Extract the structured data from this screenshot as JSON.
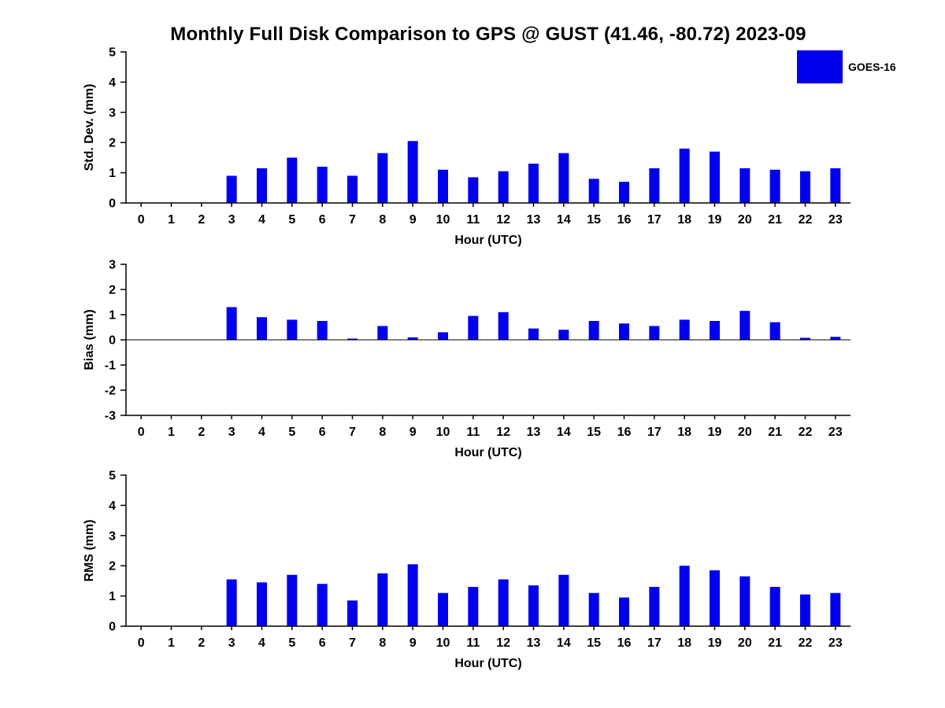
{
  "title": "Monthly Full Disk Comparison to GPS @ GUST (41.46, -80.72) 2023-09",
  "legend": {
    "label": "GOES-16",
    "color": "#0000ee"
  },
  "chart_data": [
    {
      "type": "bar",
      "name": "std-dev",
      "title": "",
      "ylabel": "Std. Dev. (mm)",
      "xlabel": "Hour (UTC)",
      "ylim": [
        0,
        5
      ],
      "yticks": [
        0,
        1,
        2,
        3,
        4,
        5
      ],
      "grid": false,
      "legend_position": "top-right-of-figure",
      "categories": [
        "0",
        "1",
        "2",
        "3",
        "4",
        "5",
        "6",
        "7",
        "8",
        "9",
        "10",
        "11",
        "12",
        "13",
        "14",
        "15",
        "16",
        "17",
        "18",
        "19",
        "20",
        "21",
        "22",
        "23"
      ],
      "series": [
        {
          "name": "GOES-16",
          "values": [
            0,
            0,
            0,
            0.9,
            1.15,
            1.5,
            1.2,
            0.9,
            1.65,
            2.05,
            1.1,
            0.85,
            1.05,
            1.3,
            1.65,
            0.8,
            0.7,
            1.15,
            1.8,
            1.7,
            1.15,
            1.1,
            1.05,
            1.15
          ]
        }
      ]
    },
    {
      "type": "bar",
      "name": "bias",
      "title": "",
      "ylabel": "Bias (mm)",
      "xlabel": "Hour (UTC)",
      "ylim": [
        -3,
        3
      ],
      "yticks": [
        -3,
        -2,
        -1,
        0,
        1,
        2,
        3
      ],
      "grid": false,
      "categories": [
        "0",
        "1",
        "2",
        "3",
        "4",
        "5",
        "6",
        "7",
        "8",
        "9",
        "10",
        "11",
        "12",
        "13",
        "14",
        "15",
        "16",
        "17",
        "18",
        "19",
        "20",
        "21",
        "22",
        "23"
      ],
      "series": [
        {
          "name": "GOES-16",
          "values": [
            0,
            0,
            0,
            1.3,
            0.9,
            0.8,
            0.75,
            0.05,
            0.55,
            0.1,
            0.3,
            0.95,
            1.1,
            0.45,
            0.4,
            0.75,
            0.65,
            0.55,
            0.8,
            0.75,
            1.15,
            0.7,
            0.08,
            0.12
          ]
        }
      ]
    },
    {
      "type": "bar",
      "name": "rms",
      "title": "",
      "ylabel": "RMS (mm)",
      "xlabel": "Hour (UTC)",
      "ylim": [
        0,
        5
      ],
      "yticks": [
        0,
        1,
        2,
        3,
        4,
        5
      ],
      "grid": false,
      "categories": [
        "0",
        "1",
        "2",
        "3",
        "4",
        "5",
        "6",
        "7",
        "8",
        "9",
        "10",
        "11",
        "12",
        "13",
        "14",
        "15",
        "16",
        "17",
        "18",
        "19",
        "20",
        "21",
        "22",
        "23"
      ],
      "series": [
        {
          "name": "GOES-16",
          "values": [
            0,
            0,
            0,
            1.55,
            1.45,
            1.7,
            1.4,
            0.85,
            1.75,
            2.05,
            1.1,
            1.3,
            1.55,
            1.35,
            1.7,
            1.1,
            0.95,
            1.3,
            2.0,
            1.85,
            1.65,
            1.3,
            1.05,
            1.1
          ]
        }
      ]
    }
  ]
}
